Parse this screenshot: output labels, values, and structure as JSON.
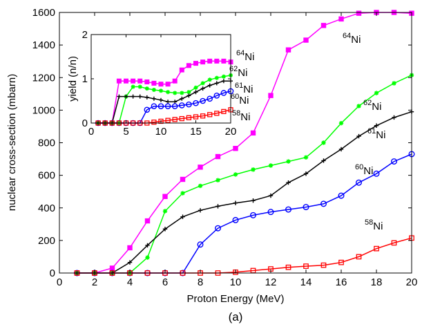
{
  "figure_caption": "(a)",
  "colors": {
    "64Ni": "#ff00ff",
    "62Ni": "#00ff00",
    "61Ni": "#000000",
    "60Ni": "#0000ff",
    "58Ni": "#ff0000"
  },
  "chart_data": [
    {
      "id": "main",
      "type": "line",
      "xlabel": "Proton Energy (MeV)",
      "ylabel": "nuclear cross-section (mbarn)",
      "xlim": [
        0,
        20
      ],
      "ylim": [
        0,
        1600
      ],
      "xticks": [
        "0",
        "2",
        "4",
        "6",
        "8",
        "10",
        "12",
        "14",
        "16",
        "18",
        "20"
      ],
      "yticks": [
        "0",
        "200",
        "400",
        "600",
        "800",
        "1000",
        "1200",
        "1400",
        "1600"
      ],
      "grid": false,
      "x": [
        1,
        2,
        3,
        4,
        5,
        6,
        7,
        8,
        9,
        10,
        11,
        12,
        13,
        14,
        15,
        16,
        17,
        18,
        19,
        20
      ],
      "series": [
        {
          "key": "64Ni",
          "mass": "64",
          "element": "Ni",
          "marker": "square-filled",
          "values": [
            0,
            0,
            30,
            155,
            320,
            470,
            575,
            650,
            715,
            765,
            860,
            1090,
            1370,
            1430,
            1520,
            1560,
            1595,
            1600,
            1600,
            1595
          ]
        },
        {
          "key": "62Ni",
          "mass": "62",
          "element": "Ni",
          "marker": "star",
          "values": [
            0,
            0,
            0,
            0,
            95,
            380,
            490,
            535,
            570,
            605,
            635,
            660,
            685,
            710,
            800,
            920,
            1025,
            1105,
            1165,
            1215
          ]
        },
        {
          "key": "61Ni",
          "mass": "61",
          "element": "Ni",
          "marker": "plus",
          "values": [
            0,
            0,
            0,
            65,
            170,
            270,
            345,
            385,
            410,
            430,
            445,
            475,
            555,
            610,
            690,
            760,
            840,
            905,
            955,
            990
          ]
        },
        {
          "key": "60Ni",
          "mass": "60",
          "element": "Ni",
          "marker": "circle",
          "values": [
            0,
            0,
            0,
            0,
            0,
            0,
            0,
            175,
            275,
            325,
            355,
            375,
            390,
            405,
            425,
            475,
            555,
            610,
            685,
            730
          ]
        },
        {
          "key": "58Ni",
          "mass": "58",
          "element": "Ni",
          "marker": "square-open",
          "values": [
            0,
            0,
            0,
            0,
            0,
            0,
            0,
            0,
            0,
            5,
            15,
            25,
            35,
            42,
            48,
            65,
            100,
            150,
            185,
            215
          ]
        }
      ]
    },
    {
      "id": "inset",
      "type": "line",
      "xlabel": "",
      "ylabel": "yield (n/n)",
      "xlim": [
        0,
        20
      ],
      "ylim": [
        0,
        2
      ],
      "xticks": [
        "0",
        "5",
        "10",
        "15",
        "20"
      ],
      "yticks": [
        "0",
        "1",
        "2"
      ],
      "grid": false,
      "series": [
        {
          "key": "64Ni",
          "mass": "64",
          "element": "Ni",
          "marker": "square-filled",
          "x": [
            1,
            2,
            3,
            4,
            5,
            6,
            7,
            8,
            9,
            10,
            11,
            12,
            13,
            14,
            15,
            16,
            17,
            18,
            19,
            20
          ],
          "values": [
            0,
            0,
            0,
            0.95,
            0.95,
            0.95,
            0.95,
            0.93,
            0.9,
            0.88,
            0.88,
            0.95,
            1.2,
            1.3,
            1.35,
            1.38,
            1.4,
            1.4,
            1.4,
            1.38
          ]
        },
        {
          "key": "62Ni",
          "mass": "62",
          "element": "Ni",
          "marker": "star",
          "x": [
            1,
            2,
            3,
            4,
            5,
            6,
            7,
            8,
            9,
            10,
            11,
            12,
            13,
            14,
            15,
            16,
            17,
            18,
            19,
            20
          ],
          "values": [
            0,
            0,
            0,
            0,
            0.6,
            0.82,
            0.82,
            0.78,
            0.75,
            0.73,
            0.7,
            0.68,
            0.68,
            0.7,
            0.8,
            0.9,
            0.98,
            1.02,
            1.05,
            1.08
          ]
        },
        {
          "key": "61Ni",
          "mass": "61",
          "element": "Ni",
          "marker": "plus",
          "x": [
            1,
            2,
            3,
            4,
            5,
            6,
            7,
            8,
            9,
            10,
            11,
            12,
            13,
            14,
            15,
            16,
            17,
            18,
            19,
            20
          ],
          "values": [
            0,
            0,
            0,
            0.6,
            0.6,
            0.6,
            0.6,
            0.58,
            0.55,
            0.52,
            0.48,
            0.48,
            0.55,
            0.62,
            0.7,
            0.78,
            0.85,
            0.9,
            0.95,
            0.95
          ]
        },
        {
          "key": "60Ni",
          "mass": "60",
          "element": "Ni",
          "marker": "circle",
          "x": [
            1,
            2,
            3,
            4,
            5,
            6,
            7,
            8,
            9,
            10,
            11,
            12,
            13,
            14,
            15,
            16,
            17,
            18,
            19,
            20
          ],
          "values": [
            0,
            0,
            0,
            0,
            0,
            0,
            0,
            0.3,
            0.38,
            0.38,
            0.38,
            0.38,
            0.4,
            0.42,
            0.45,
            0.5,
            0.55,
            0.62,
            0.68,
            0.72
          ]
        },
        {
          "key": "58Ni",
          "mass": "58",
          "element": "Ni",
          "marker": "square-open",
          "x": [
            1,
            2,
            3,
            4,
            5,
            6,
            7,
            8,
            9,
            10,
            11,
            12,
            13,
            14,
            15,
            16,
            17,
            18,
            19,
            20
          ],
          "values": [
            0,
            0,
            0,
            0,
            0,
            0,
            0,
            0,
            0.02,
            0.04,
            0.06,
            0.08,
            0.1,
            0.12,
            0.14,
            0.16,
            0.19,
            0.22,
            0.26,
            0.3
          ]
        }
      ]
    }
  ]
}
